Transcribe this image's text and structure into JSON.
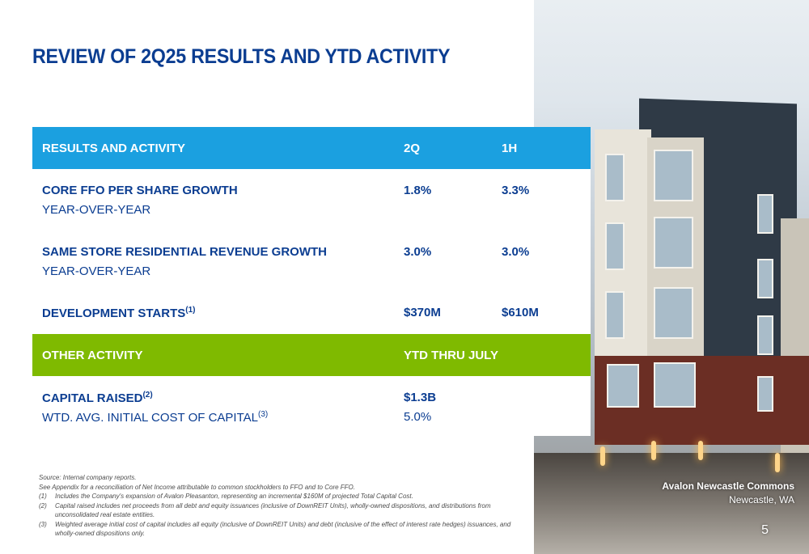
{
  "title": "REVIEW OF 2Q25 RESULTS AND YTD ACTIVITY",
  "results_header": {
    "label": "RESULTS AND ACTIVITY",
    "col1": "2Q",
    "col2": "1H"
  },
  "rows": [
    {
      "label": "CORE FFO PER SHARE GROWTH",
      "sublabel": "YEAR-OVER-YEAR",
      "q2": "1.8%",
      "h1": "3.3%"
    },
    {
      "label": "SAME STORE RESIDENTIAL REVENUE GROWTH",
      "sublabel": "YEAR-OVER-YEAR",
      "q2": "3.0%",
      "h1": "3.0%"
    },
    {
      "label": "DEVELOPMENT STARTS",
      "sup": "(1)",
      "q2": "$370M",
      "h1": "$610M"
    }
  ],
  "other_header": {
    "label": "OTHER ACTIVITY",
    "col1": "YTD THRU JULY"
  },
  "other_rows": [
    {
      "label": "CAPITAL RAISED",
      "sup": "(2)",
      "value": "$1.3B"
    },
    {
      "label": "WTD. AVG. INITIAL COST OF CAPITAL",
      "sup": "(3)",
      "value": "5.0%"
    }
  ],
  "footnotes": {
    "source": "Source:  Internal company reports.",
    "appendix": "See Appendix for a reconciliation of Net Income attributable to common stockholders to FFO and to Core FFO.",
    "items": [
      {
        "num": "(1)",
        "text": "Includes the Company's expansion of Avalon Pleasanton, representing an incremental $160M of projected Total Capital Cost."
      },
      {
        "num": "(2)",
        "text": "Capital raised includes net proceeds from all debt and equity issuances (inclusive of DownREIT Units), wholly-owned dispositions, and distributions from unconsolidated real estate entities."
      },
      {
        "num": "(3)",
        "text": "Weighted average initial cost of capital includes all equity (inclusive of DownREIT Units) and debt (inclusive of the effect of interest rate hedges) issuances, and wholly-owned dispositions only."
      }
    ]
  },
  "photo": {
    "caption_title": "Avalon Newcastle Commons",
    "caption_location": "Newcastle, WA"
  },
  "page_number": "5",
  "colors": {
    "title": "#0b3d91",
    "header_blue": "#1ba0e0",
    "header_green": "#7fba00"
  }
}
